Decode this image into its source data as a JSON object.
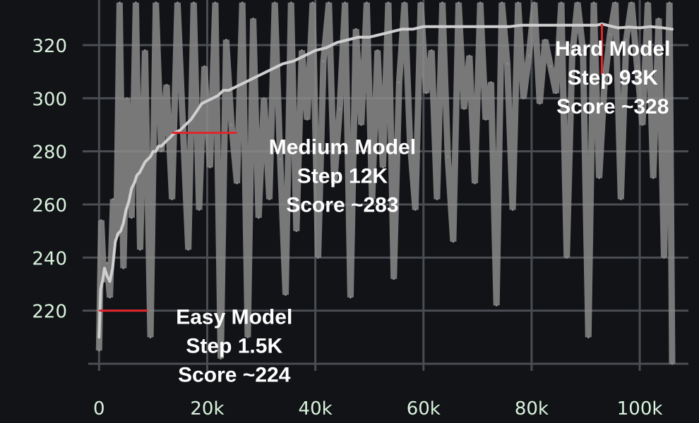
{
  "chart_data": {
    "type": "line",
    "title": "",
    "xlabel": "",
    "ylabel": "",
    "xlim": [
      -2000,
      109000
    ],
    "ylim": [
      200,
      337
    ],
    "grid": true,
    "x_ticks": [
      0,
      20000,
      40000,
      60000,
      80000,
      100000
    ],
    "x_tick_labels": [
      "0",
      "20k",
      "40k",
      "60k",
      "80k",
      "100k"
    ],
    "y_ticks": [
      220,
      240,
      260,
      280,
      300,
      320
    ],
    "y_tick_labels": [
      "220",
      "240",
      "260",
      "280",
      "300",
      "320"
    ],
    "colors": {
      "background": "#111317",
      "grid": "#4a4d52",
      "raw_series": "#8b8b8b",
      "smoothed_series": "#cfcfcf",
      "marker": "#e0262b",
      "tick_text": "#d9f2dc",
      "annotation_text": "#ffffff"
    },
    "series": [
      {
        "role": "raw",
        "x": [
          0,
          400,
          900,
          1500,
          2000,
          2600,
          3200,
          3800,
          4500,
          5200,
          6000,
          6800,
          7600,
          8500,
          9500,
          10500,
          11500,
          12500,
          13500,
          14500,
          15500,
          16500,
          17500,
          18500,
          19500,
          20500,
          21500,
          22500,
          23500,
          24500,
          25500,
          26500,
          27500,
          28500,
          29500,
          30500,
          31500,
          32500,
          33500,
          34500,
          35500,
          36500,
          37500,
          38500,
          39500,
          40500,
          41500,
          42500,
          43500,
          44500,
          45500,
          46500,
          47500,
          48500,
          49500,
          50500,
          51500,
          52500,
          53500,
          54500,
          55500,
          56500,
          57500,
          58500,
          59500,
          60500,
          61500,
          62500,
          63500,
          64500,
          65500,
          66500,
          67500,
          68500,
          69500,
          70500,
          71500,
          72500,
          73500,
          74500,
          75500,
          76500,
          77500,
          78500,
          79500,
          80500,
          81500,
          82500,
          83500,
          84500,
          85500,
          86500,
          87500,
          88500,
          89500,
          90500,
          91500,
          92500,
          93500,
          94500,
          95500,
          96500,
          97500,
          98500,
          99500,
          100500,
          101500,
          102500,
          103500,
          104500,
          105500,
          106000
        ],
        "y": [
          205,
          254,
          231,
          238,
          225,
          262,
          248,
          336,
          236,
          300,
          255,
          336,
          243,
          318,
          210,
          336,
          280,
          305,
          262,
          336,
          290,
          243,
          336,
          258,
          312,
          274,
          336,
          202,
          322,
          290,
          268,
          336,
          210,
          330,
          255,
          300,
          262,
          336,
          277,
          226,
          336,
          250,
          318,
          292,
          336,
          240,
          314,
          336,
          268,
          296,
          336,
          225,
          326,
          290,
          336,
          262,
          318,
          274,
          336,
          232,
          306,
          336,
          284,
          258,
          336,
          302,
          318,
          262,
          336,
          278,
          246,
          336,
          296,
          316,
          268,
          336,
          292,
          306,
          222,
          336,
          313,
          258,
          336,
          300,
          316,
          336,
          298,
          322,
          312,
          302,
          336,
          240,
          316,
          336,
          318,
          210,
          336,
          270,
          306,
          324,
          336,
          262,
          322,
          336,
          312,
          290,
          336,
          270,
          330,
          240,
          336,
          200
        ]
      },
      {
        "role": "smoothed",
        "x": [
          0,
          300,
          700,
          1000,
          1500,
          2000,
          2500,
          3000,
          3500,
          4000,
          4500,
          5000,
          5500,
          6000,
          6500,
          7000,
          7500,
          8000,
          8500,
          9000,
          9500,
          10000,
          10500,
          11000,
          11500,
          12000,
          12500,
          13000,
          13500,
          14000,
          15000,
          16000,
          17000,
          18000,
          19000,
          20000,
          21000,
          22000,
          23000,
          24000,
          25000,
          26000,
          27000,
          28000,
          29000,
          30000,
          31000,
          32000,
          34000,
          36000,
          38000,
          40000,
          42000,
          44000,
          46000,
          48000,
          50000,
          52000,
          54000,
          56000,
          58000,
          60000,
          62000,
          64000,
          66000,
          68000,
          70000,
          72000,
          74000,
          76000,
          78000,
          80000,
          82000,
          84000,
          86000,
          88000,
          90000,
          92000,
          93000,
          94000,
          96000,
          98000,
          100000,
          102000,
          104000,
          106000
        ],
        "y": [
          210,
          228,
          232,
          236,
          233,
          231,
          236,
          246,
          249,
          250,
          253,
          258,
          261,
          266,
          268,
          271,
          272,
          274,
          276,
          277,
          278,
          280,
          280,
          282,
          282,
          283,
          284,
          285,
          286,
          287,
          288,
          290,
          292,
          295,
          298,
          299,
          300,
          301,
          303,
          303,
          304,
          305,
          306,
          307,
          308,
          309,
          310,
          311,
          313,
          314,
          316,
          318,
          319,
          321,
          322,
          323,
          323,
          324,
          325,
          326,
          326,
          327,
          327,
          327,
          327,
          327,
          327,
          327,
          327,
          327,
          327.5,
          327.5,
          327.5,
          327.5,
          327.5,
          327.5,
          327.5,
          327.5,
          328,
          327.5,
          326.5,
          326.8,
          326.5,
          327,
          326.6,
          326
        ]
      }
    ],
    "markers": [
      {
        "orientation": "horizontal",
        "x_start": 0,
        "x_end": 9000,
        "y": 220
      },
      {
        "orientation": "horizontal",
        "x_start": 13500,
        "x_end": 25500,
        "y": 287
      },
      {
        "orientation": "vertical",
        "x": 93000,
        "y_start": 309,
        "y_end": 328
      }
    ],
    "annotations": [
      {
        "lines": [
          "Easy Model",
          "Step 1.5K",
          "Score ~224"
        ],
        "x": 25000,
        "y": 215
      },
      {
        "lines": [
          "Medium Model",
          "Step 12K",
          "Score ~283"
        ],
        "x": 45000,
        "y": 279
      },
      {
        "lines": [
          "Hard Model",
          "Step 93K",
          "Score ~328"
        ],
        "x": 95000,
        "y": 316
      }
    ]
  }
}
